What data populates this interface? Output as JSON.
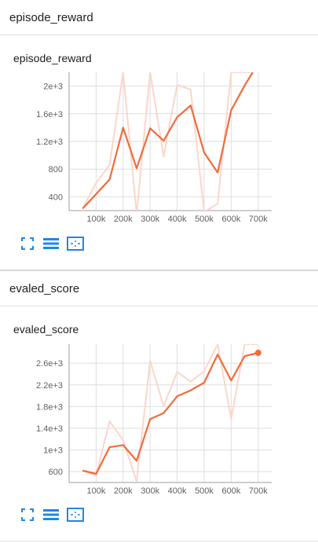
{
  "sections": [
    {
      "title": "episode_reward",
      "card_title": "episode_reward"
    },
    {
      "title": "evaled_score",
      "card_title": "evaled_score"
    }
  ],
  "toolbar": {
    "fit_icon": "fullscreen-icon",
    "data_icon": "data-table-icon",
    "zoom_icon": "fit-domain-icon",
    "accent": "#1e88e5"
  },
  "colors": {
    "smoothed": "#f26b3a",
    "raw": "#fbd6ca",
    "grid": "#dedede",
    "axis": "#9e9e9e"
  },
  "chart_data": [
    {
      "type": "line",
      "title": "episode_reward",
      "xlim": [
        0,
        750000
      ],
      "ylim": [
        200,
        2200
      ],
      "xticks": [
        100000,
        200000,
        300000,
        400000,
        500000,
        600000,
        700000
      ],
      "xtick_labels": [
        "100k",
        "200k",
        "300k",
        "400k",
        "500k",
        "600k",
        "700k"
      ],
      "yticks": [
        400,
        800,
        1200,
        1600,
        2000
      ],
      "ytick_labels": [
        "400",
        "800",
        "1.2e+3",
        "1.6e+3",
        "2e+3"
      ],
      "grid": true,
      "series": [
        {
          "role": "smoothed",
          "x": [
            50000,
            150000,
            200000,
            250000,
            300000,
            350000,
            400000,
            450000,
            500000,
            550000,
            600000,
            650000,
            680000
          ],
          "y": [
            230,
            650,
            1400,
            810,
            1390,
            1210,
            1550,
            1720,
            1040,
            750,
            1650,
            2010,
            2200
          ]
        },
        {
          "role": "raw",
          "x": [
            50000,
            100000,
            150000,
            200000,
            250000,
            300000,
            350000,
            400000,
            450000,
            500000,
            550000,
            600000,
            650000,
            680000
          ],
          "y": [
            230,
            600,
            860,
            2200,
            150,
            2200,
            980,
            2020,
            1950,
            180,
            300,
            2200,
            2200,
            2200
          ]
        }
      ]
    },
    {
      "type": "line",
      "title": "evaled_score",
      "xlim": [
        0,
        750000
      ],
      "ylim": [
        400,
        2950
      ],
      "xticks": [
        100000,
        200000,
        300000,
        400000,
        500000,
        600000,
        700000
      ],
      "xtick_labels": [
        "100k",
        "200k",
        "300k",
        "400k",
        "500k",
        "600k",
        "700k"
      ],
      "yticks": [
        600,
        1000,
        1400,
        1800,
        2200,
        2600
      ],
      "ytick_labels": [
        "600",
        "1e+3",
        "1.4e+3",
        "1.8e+3",
        "2.2e+3",
        "2.6e+3"
      ],
      "grid": true,
      "series": [
        {
          "role": "smoothed",
          "x": [
            50000,
            100000,
            150000,
            200000,
            250000,
            300000,
            350000,
            400000,
            450000,
            500000,
            550000,
            600000,
            650000,
            700000
          ],
          "y": [
            620,
            560,
            1050,
            1090,
            800,
            1570,
            1680,
            1990,
            2100,
            2240,
            2760,
            2280,
            2730,
            2790
          ]
        },
        {
          "role": "raw",
          "x": [
            50000,
            100000,
            150000,
            200000,
            250000,
            300000,
            350000,
            400000,
            450000,
            500000,
            550000,
            600000,
            650000,
            700000
          ],
          "y": [
            620,
            530,
            1530,
            1180,
            420,
            2640,
            1810,
            2440,
            2260,
            2450,
            2950,
            1570,
            2950,
            2950
          ]
        }
      ],
      "last_point": {
        "x": 700000,
        "y": 2790
      }
    }
  ]
}
